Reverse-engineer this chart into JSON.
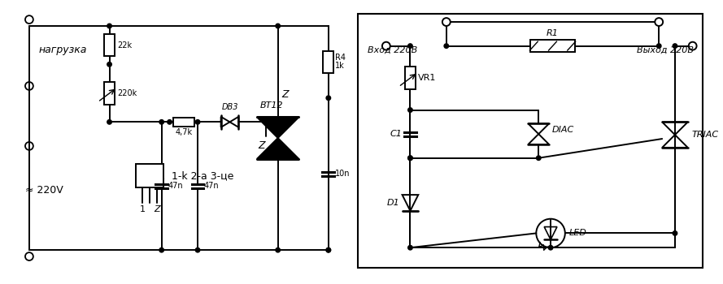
{
  "bg_color": "#ffffff",
  "line_color": "#000000",
  "fig_width": 8.89,
  "fig_height": 3.5,
  "left": {
    "label_load": "нагрузка",
    "label_voltage": "≈ 220V",
    "r22k": "22k",
    "r220k": "220k",
    "r47k": "4,7k",
    "db3": "DB3",
    "bt12": "BT12",
    "r4": "R4",
    "r4val": "1k",
    "c10n": "10n",
    "c47n1": "47n",
    "c47n2": "47n",
    "z_label": "Z",
    "transistor_label": "1-k 2-a 3-це",
    "pin1": "1",
    "pinZ": "Z"
  },
  "right": {
    "label_in": "Вход 220В",
    "label_out": "Выход 220В",
    "r1": "R1",
    "vr1": "VR1",
    "triac": "TRIAC",
    "c1": "C1",
    "diac": "DIAC",
    "d1": "D1",
    "led": "LED"
  }
}
